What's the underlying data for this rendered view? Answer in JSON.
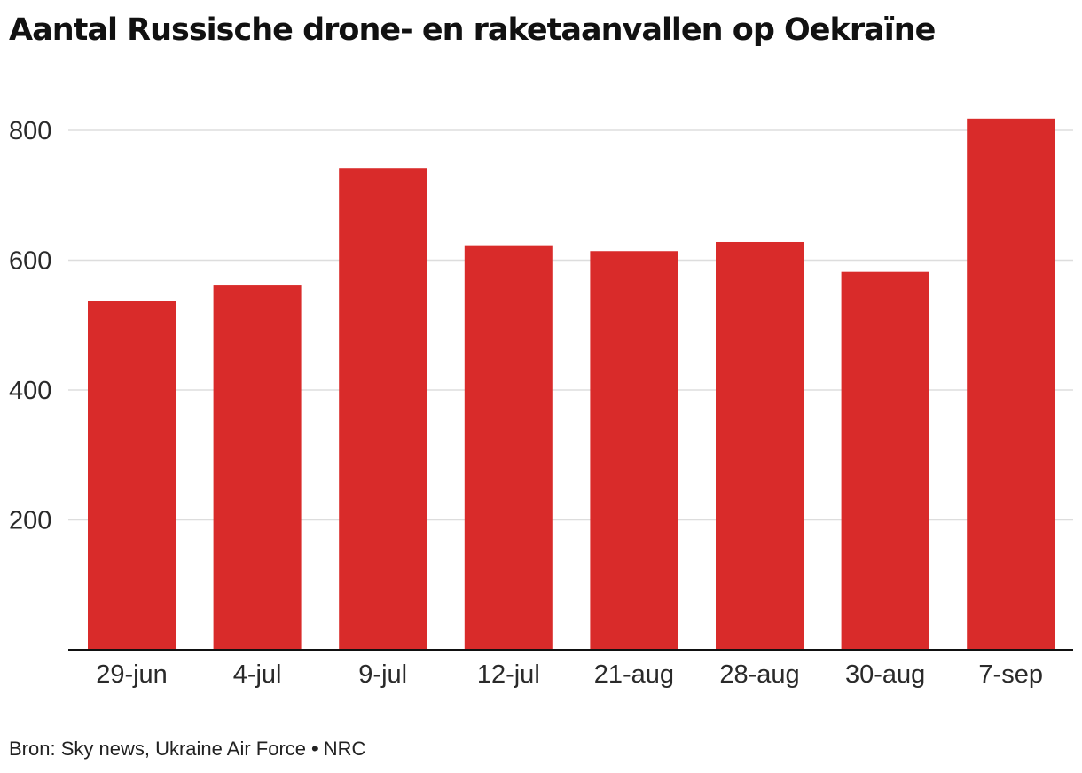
{
  "title": "Aantal Russische drone- en raketaanvallen op Oekraïne",
  "source": "Bron: Sky news, Ukraine Air Force",
  "publisher": "NRC",
  "colors": {
    "bar": "#d92b2a",
    "grid": "#dddddd",
    "axis": "#111111"
  },
  "chart_data": {
    "type": "bar",
    "title": "Aantal Russische drone- en raketaanvallen op Oekraïne",
    "xlabel": "",
    "ylabel": "",
    "categories": [
      "29-jun",
      "4-jul",
      "9-jul",
      "12-jul",
      "21-aug",
      "28-aug",
      "30-aug",
      "7-sep"
    ],
    "values": [
      537,
      561,
      741,
      623,
      614,
      628,
      582,
      818
    ],
    "ylim": [
      0,
      840
    ],
    "yticks": [
      200,
      400,
      600,
      800
    ],
    "grid": true,
    "legend": "none"
  }
}
